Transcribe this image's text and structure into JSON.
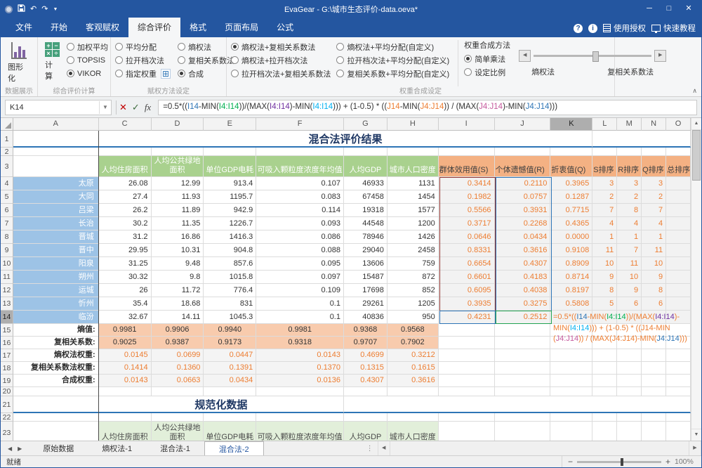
{
  "window": {
    "title": "EvaGear - G:\\城市生态评价-data.oeva*",
    "controls": {
      "minimize": "─",
      "maximize": "□",
      "close": "✕"
    }
  },
  "menu": {
    "tabs": [
      {
        "label": "文件",
        "active": false
      },
      {
        "label": "开始",
        "active": false
      },
      {
        "label": "客观赋权",
        "active": false
      },
      {
        "label": "综合评价",
        "active": true
      },
      {
        "label": "格式",
        "active": false
      },
      {
        "label": "页面布局",
        "active": false
      },
      {
        "label": "公式",
        "active": false
      }
    ],
    "right": {
      "help": "?",
      "info": "i",
      "license": "使用授权",
      "tutorial": "快速教程"
    }
  },
  "ribbon": {
    "g1": {
      "label": "数据展示",
      "button": "图形化"
    },
    "g2": {
      "label": "综合评价计算",
      "button": "计算",
      "radios": [
        {
          "t": "加权平均",
          "on": false
        },
        {
          "t": "TOPSIS",
          "on": false
        },
        {
          "t": "VIKOR",
          "on": true
        }
      ]
    },
    "g3": {
      "label": "赋权方法设定",
      "col1": [
        {
          "t": "平均分配",
          "on": false
        },
        {
          "t": "拉开档次法",
          "on": false
        },
        {
          "t": "指定权重",
          "on": false,
          "icon": true
        }
      ],
      "col2": [
        {
          "t": "熵权法",
          "on": false
        },
        {
          "t": "复相关系数法",
          "on": false
        },
        {
          "t": "合成",
          "on": true
        }
      ]
    },
    "g4": {
      "label": "权重合成设定",
      "col1": [
        {
          "t": "熵权法+复相关系数法",
          "on": true
        },
        {
          "t": "熵权法+拉开档次法",
          "on": false
        },
        {
          "t": "拉开档次法+复相关系数法",
          "on": false
        }
      ],
      "col2": [
        {
          "t": "熵权法+平均分配(自定义)",
          "on": false
        },
        {
          "t": "拉开档次法+平均分配(自定义)",
          "on": false
        },
        {
          "t": "复相关系数+平均分配(自定义)",
          "on": false
        }
      ],
      "method_title": "权重合成方法",
      "method_radios": [
        {
          "t": "简单乘法",
          "on": true
        },
        {
          "t": "设定比例",
          "on": false
        }
      ],
      "slider_left": "熵权法",
      "slider_right": "复相关系数法"
    }
  },
  "formula_bar": {
    "name_box": "K14",
    "parts": [
      {
        "t": "=0.5*(("
      },
      {
        "t": "I14",
        "c": "#2E75B6"
      },
      {
        "t": "-MIN("
      },
      {
        "t": "I4:I14",
        "c": "#00B050"
      },
      {
        "t": "))/(MAX("
      },
      {
        "t": "I4:I14",
        "c": "#7030A0"
      },
      {
        "t": ")-MIN("
      },
      {
        "t": "I4:I14",
        "c": "#00B0F0"
      },
      {
        "t": "))) + (1-0.5) * (("
      },
      {
        "t": "J14",
        "c": "#ED7D31"
      },
      {
        "t": "-MIN("
      },
      {
        "t": "J4:J14",
        "c": "#ED7D31"
      },
      {
        "t": ")) / (MAX("
      },
      {
        "t": "J4:J14",
        "c": "#C55A9D"
      },
      {
        "t": ")-MIN("
      },
      {
        "t": "J4:J14",
        "c": "#2E75B6"
      },
      {
        "t": ")))"
      }
    ]
  },
  "sheet": {
    "col_headers": [
      "A",
      "C",
      "D",
      "E",
      "F",
      "G",
      "H",
      "I",
      "J",
      "K",
      "L",
      "M",
      "N",
      "O"
    ],
    "selected_col": "K",
    "selected_row": 14,
    "row1_title": "混合法评价结果",
    "row21_title": "规范化数据",
    "green_headers": [
      "人均住房面积",
      "人均公共绿地\n面积",
      "单位GDP电耗",
      "可吸入颗粒度浓度年均值",
      "人均GDP",
      "城市人口密度"
    ],
    "orange_headers": [
      "群体效用值(S)",
      "个体遗憾值(R)",
      "折衷值(Q)",
      "S排序",
      "R排序",
      "Q排序",
      "总排序"
    ],
    "rows": [
      {
        "r": 4,
        "city": "太原",
        "vals": [
          "26.08",
          "12.99",
          "913.4",
          "0.107",
          "46933",
          "1131"
        ],
        "vikor": [
          "0.3414",
          "0.2110",
          "0.3965",
          "3",
          "3",
          "3"
        ]
      },
      {
        "r": 5,
        "city": "大同",
        "vals": [
          "27.4",
          "11.93",
          "1195.7",
          "0.083",
          "67458",
          "1454"
        ],
        "vikor": [
          "0.1982",
          "0.0757",
          "0.1287",
          "2",
          "2",
          "2"
        ]
      },
      {
        "r": 6,
        "city": "吕梁",
        "vals": [
          "26.2",
          "11.89",
          "942.9",
          "0.114",
          "19318",
          "1577"
        ],
        "vikor": [
          "0.5566",
          "0.3931",
          "0.7715",
          "7",
          "8",
          "7"
        ]
      },
      {
        "r": 7,
        "city": "长治",
        "vals": [
          "30.2",
          "11.35",
          "1226.7",
          "0.093",
          "44548",
          "1200"
        ],
        "vikor": [
          "0.3717",
          "0.2268",
          "0.4365",
          "4",
          "4",
          "4"
        ]
      },
      {
        "r": 8,
        "city": "晋城",
        "vals": [
          "31.2",
          "16.86",
          "1416.3",
          "0.086",
          "78946",
          "1426"
        ],
        "vikor": [
          "0.0646",
          "0.0434",
          "0.0000",
          "1",
          "1",
          "1"
        ]
      },
      {
        "r": 9,
        "city": "晋中",
        "vals": [
          "29.95",
          "10.31",
          "904.8",
          "0.088",
          "29040",
          "2458"
        ],
        "vikor": [
          "0.8331",
          "0.3616",
          "0.9108",
          "11",
          "7",
          "11"
        ]
      },
      {
        "r": 10,
        "city": "阳泉",
        "vals": [
          "31.25",
          "9.48",
          "857.6",
          "0.095",
          "13606",
          "759"
        ],
        "vikor": [
          "0.6654",
          "0.4307",
          "0.8909",
          "10",
          "11",
          "10"
        ]
      },
      {
        "r": 11,
        "city": "朔州",
        "vals": [
          "30.32",
          "9.8",
          "1015.8",
          "0.097",
          "15487",
          "872"
        ],
        "vikor": [
          "0.6601",
          "0.4183",
          "0.8714",
          "9",
          "10",
          "9"
        ]
      },
      {
        "r": 12,
        "city": "运城",
        "vals": [
          "26",
          "11.72",
          "776.4",
          "0.109",
          "17698",
          "852"
        ],
        "vikor": [
          "0.6095",
          "0.4038",
          "0.8197",
          "8",
          "9",
          "8"
        ]
      },
      {
        "r": 13,
        "city": "忻州",
        "vals": [
          "35.4",
          "18.68",
          "831",
          "0.1",
          "29261",
          "1205"
        ],
        "vikor": [
          "0.3935",
          "0.3275",
          "0.5808",
          "5",
          "6",
          "6"
        ]
      },
      {
        "r": 14,
        "city": "临汾",
        "vals": [
          "32.67",
          "14.11",
          "1045.3",
          "0.1",
          "40836",
          "950"
        ],
        "vikor": [
          "0.4231",
          "0.2512",
          "",
          "",
          "",
          ""
        ]
      }
    ],
    "stat_rows": [
      {
        "r": 15,
        "label": "熵值:",
        "kind": "orange",
        "values": [
          "0.9981",
          "0.9906",
          "0.9940",
          "0.9981",
          "0.9368",
          "0.9568"
        ]
      },
      {
        "r": 16,
        "label": "复相关系数:",
        "kind": "orange",
        "values": [
          "0.9025",
          "0.9387",
          "0.9173",
          "0.9318",
          "0.9707",
          "0.7902"
        ]
      },
      {
        "r": 17,
        "label": "熵权法权重:",
        "kind": "weight",
        "values": [
          "0.0145",
          "0.0699",
          "0.0447",
          "0.0143",
          "0.4699",
          "0.3212"
        ]
      },
      {
        "r": 18,
        "label": "复相关系数法权重:",
        "kind": "weight",
        "values": [
          "0.1414",
          "0.1360",
          "0.1391",
          "0.1370",
          "0.1315",
          "0.1615"
        ]
      },
      {
        "r": 19,
        "label": "合成权重:",
        "kind": "weight",
        "values": [
          "0.0143",
          "0.0663",
          "0.0434",
          "0.0136",
          "0.4307",
          "0.3616"
        ]
      }
    ],
    "cell_formula_lines": [
      [
        {
          "t": "=0.5*(("
        },
        {
          "t": "I14",
          "c": "#2E75B6"
        },
        {
          "t": "-MIN("
        },
        {
          "t": "I4:I14",
          "c": "#00B050"
        },
        {
          "t": "))/(MAX("
        },
        {
          "t": "I4:I14",
          "c": "#7030A0"
        },
        {
          "t": ")-"
        }
      ],
      [
        {
          "t": "MIN("
        },
        {
          "t": "I4:I14",
          "c": "#00B0F0"
        },
        {
          "t": "))) + (1-0.5) * (("
        },
        {
          "t": "J14"
        },
        {
          "t": "-MIN"
        }
      ],
      [
        {
          "t": "("
        },
        {
          "t": "J4:J14",
          "c": "#C55A9D"
        },
        {
          "t": ")) / (MAX("
        },
        {
          "t": "J4:J14"
        },
        {
          "t": ")-MIN("
        },
        {
          "t": "J4:J14",
          "c": "#2E75B6"
        },
        {
          "t": ")))"
        }
      ]
    ]
  },
  "sheet_tabs": {
    "items": [
      {
        "label": "原始数据",
        "active": false
      },
      {
        "label": "熵权法-1",
        "active": false
      },
      {
        "label": "混合法-1",
        "active": false
      },
      {
        "label": "混合法-2",
        "active": true
      }
    ]
  },
  "status_bar": {
    "ready_text": "就绪",
    "zoom_level": "100%"
  },
  "colors": {
    "accent_blue": "#2456A0",
    "range_red": "#953735",
    "range_blue": "#2E75B6",
    "range_green": "#21A352",
    "orange_text": "#ED7D31",
    "green_header_bg": "#A9D18E",
    "green_header_light_bg": "#E2EFDA",
    "orange_header_bg": "#F4B183",
    "orange_value_bg": "#F8CBAD",
    "city_bg": "#9DC3E6"
  }
}
